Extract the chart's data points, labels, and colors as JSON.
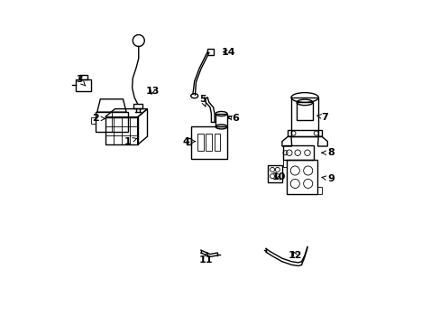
{
  "background_color": "#ffffff",
  "line_color": "#000000",
  "fig_width": 4.89,
  "fig_height": 3.6,
  "dpi": 100,
  "label_positions": {
    "1": [
      0.215,
      0.565,
      0.245,
      0.575
    ],
    "2": [
      0.115,
      0.635,
      0.155,
      0.635
    ],
    "3": [
      0.065,
      0.755,
      0.085,
      0.735
    ],
    "4": [
      0.395,
      0.565,
      0.425,
      0.565
    ],
    "5": [
      0.445,
      0.695,
      0.455,
      0.67
    ],
    "6": [
      0.545,
      0.635,
      0.52,
      0.64
    ],
    "7": [
      0.82,
      0.64,
      0.795,
      0.645
    ],
    "8": [
      0.84,
      0.53,
      0.81,
      0.53
    ],
    "9": [
      0.84,
      0.45,
      0.81,
      0.455
    ],
    "10": [
      0.68,
      0.455,
      0.685,
      0.47
    ],
    "11": [
      0.455,
      0.2,
      0.46,
      0.225
    ],
    "12": [
      0.73,
      0.215,
      0.72,
      0.235
    ],
    "13": [
      0.29,
      0.72,
      0.285,
      0.7
    ],
    "14": [
      0.525,
      0.84,
      0.498,
      0.84
    ]
  }
}
